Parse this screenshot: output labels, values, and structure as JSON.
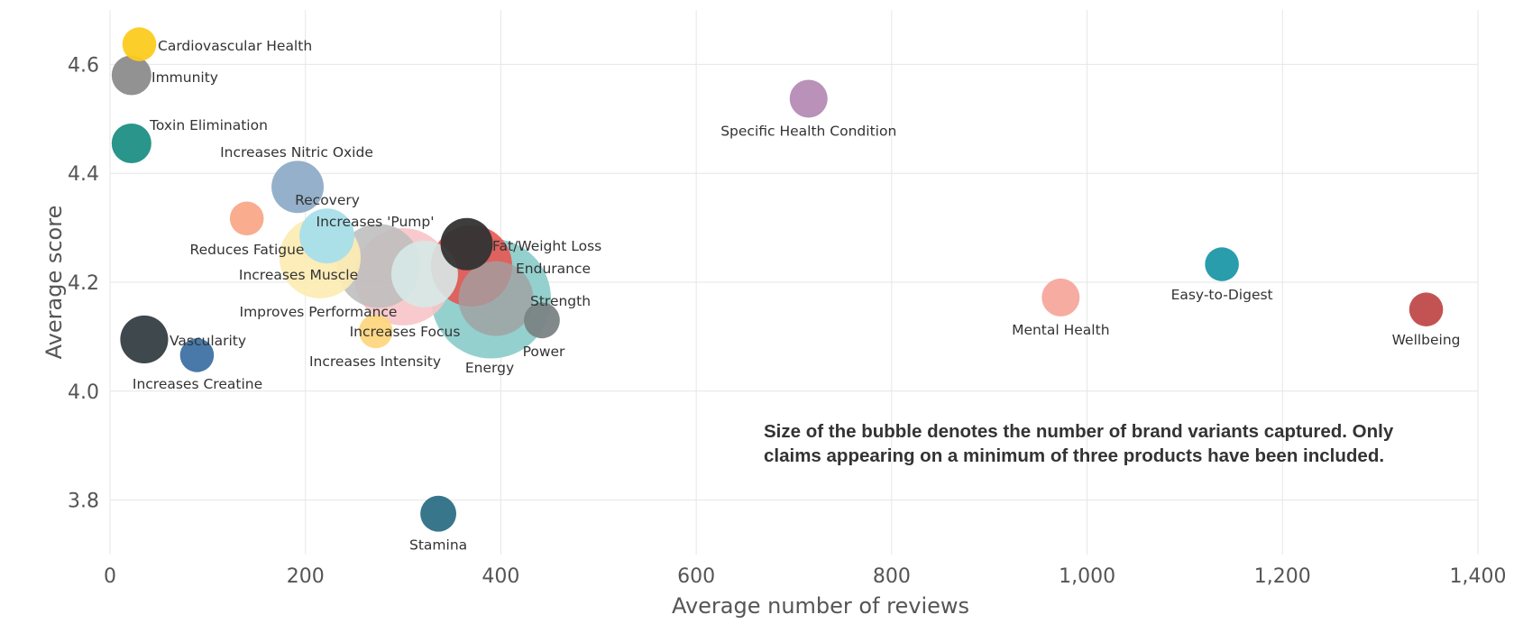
{
  "chart_data": {
    "type": "scatter",
    "xlabel": "Average number of reviews",
    "ylabel": "Average score",
    "xlim": [
      0,
      1400
    ],
    "ylim": [
      3.7,
      4.7
    ],
    "x_ticks": [
      0,
      200,
      400,
      600,
      800,
      1000,
      1200,
      1400
    ],
    "x_tick_labels": [
      "0",
      "200",
      "400",
      "600",
      "800",
      "1,000",
      "1,200",
      "1,400"
    ],
    "y_ticks": [
      3.8,
      4.0,
      4.2,
      4.4,
      4.6
    ],
    "y_tick_labels": [
      "3.8",
      "4.0",
      "4.2",
      "4.4",
      "4.6"
    ],
    "grid": true,
    "bubble_size_meaning": "number of brand variants captured",
    "annotation": "Size of the bubble denotes the number of brand variants captured. Only claims appearing on a minimum of three products have been included.",
    "points": [
      {
        "label": "Endurance",
        "x": 390,
        "y": 4.17,
        "size": 10.0,
        "color": "#8ECDCB",
        "opacity": 0.95,
        "label_pos": "upper-right"
      },
      {
        "label": "Improves Performance",
        "x": 300,
        "y": 4.21,
        "size": 6.6,
        "color": "#F8C4C8",
        "opacity": 0.9,
        "label_pos": "lower-left"
      },
      {
        "label": "Increases Muscle",
        "x": 275,
        "y": 4.23,
        "size": 4.9,
        "color": "#BDBDBD",
        "opacity": 0.88,
        "label_pos": "left"
      },
      {
        "label": "Fat/Weight Loss",
        "x": 370,
        "y": 4.23,
        "size": 4.6,
        "color": "#E8524F",
        "opacity": 0.88,
        "label_pos": "right"
      },
      {
        "label": "Increases Focus",
        "x": 215,
        "y": 4.245,
        "size": 4.6,
        "color": "#FCEBB3",
        "opacity": 0.92,
        "label_pos": "below"
      },
      {
        "label": "Strength",
        "x": 395,
        "y": 4.17,
        "size": 3.9,
        "color": "#A0A0A0",
        "opacity": 0.8,
        "label_pos": "right"
      },
      {
        "label": "Increases Intensity",
        "x": 322,
        "y": 4.215,
        "size": 3.1,
        "color": "#D6E9E7",
        "opacity": 0.9,
        "label_pos": "below"
      },
      {
        "label": "Increases 'Pump'",
        "x": 222,
        "y": 4.285,
        "size": 2.1,
        "color": "#A8DFEA",
        "opacity": 0.95,
        "label_pos": "upper-right"
      },
      {
        "label": "Recovery",
        "x": 192,
        "y": 4.375,
        "size": 1.9,
        "color": "#8FACC7",
        "opacity": 0.95,
        "label_pos": "below-right"
      },
      {
        "label": "Energy",
        "x": 365,
        "y": 4.27,
        "size": 1.9,
        "color": "#333333",
        "opacity": 0.95,
        "label_pos": "below-far"
      },
      {
        "label": "Vascularity",
        "x": 35,
        "y": 4.095,
        "size": 1.6,
        "color": "#353E42",
        "opacity": 0.95,
        "label_pos": "right"
      },
      {
        "label": "Immunity",
        "x": 22,
        "y": 4.58,
        "size": 1.1,
        "color": "#8C8C8C",
        "opacity": 0.95,
        "label_pos": "right"
      },
      {
        "label": "Toxin Elimination",
        "x": 22,
        "y": 4.455,
        "size": 1.1,
        "color": "#1F8F84",
        "opacity": 0.95,
        "label_pos": "upper-right"
      },
      {
        "label": "Specific Health Condition",
        "x": 715,
        "y": 4.537,
        "size": 1.0,
        "color": "#B58BB5",
        "opacity": 0.95,
        "label_pos": "below"
      },
      {
        "label": "Mental Health",
        "x": 973,
        "y": 4.172,
        "size": 1.0,
        "color": "#F5A89C",
        "opacity": 0.95,
        "label_pos": "below"
      },
      {
        "label": "Power",
        "x": 442,
        "y": 4.13,
        "size": 0.9,
        "color": "#7A8384",
        "opacity": 0.95,
        "label_pos": "below"
      },
      {
        "label": "Stamina",
        "x": 336,
        "y": 3.775,
        "size": 0.9,
        "color": "#2D6F86",
        "opacity": 0.95,
        "label_pos": "below"
      },
      {
        "label": "Easy-to-Digest",
        "x": 1138,
        "y": 4.233,
        "size": 0.8,
        "color": "#1E98A6",
        "opacity": 0.95,
        "label_pos": "below"
      },
      {
        "label": "Wellbeing",
        "x": 1347,
        "y": 4.15,
        "size": 0.8,
        "color": "#C04A4A",
        "opacity": 0.95,
        "label_pos": "below"
      },
      {
        "label": "Cardiovascular Health",
        "x": 30,
        "y": 4.637,
        "size": 0.8,
        "color": "#FCCB1F",
        "opacity": 0.95,
        "label_pos": "right"
      },
      {
        "label": "Reduces Fatigue",
        "x": 140,
        "y": 4.317,
        "size": 0.8,
        "color": "#F9A888",
        "opacity": 0.95,
        "label_pos": "below"
      },
      {
        "label": "Increases Creatine",
        "x": 89,
        "y": 4.066,
        "size": 0.8,
        "color": "#3E72A3",
        "opacity": 0.95,
        "label_pos": "below"
      },
      {
        "label": "Increases Nitric Oxide",
        "x": 272,
        "y": 4.11,
        "size": 0.8,
        "color": "#FDD680",
        "opacity": 0.95,
        "label_pos": "above-far"
      }
    ]
  }
}
